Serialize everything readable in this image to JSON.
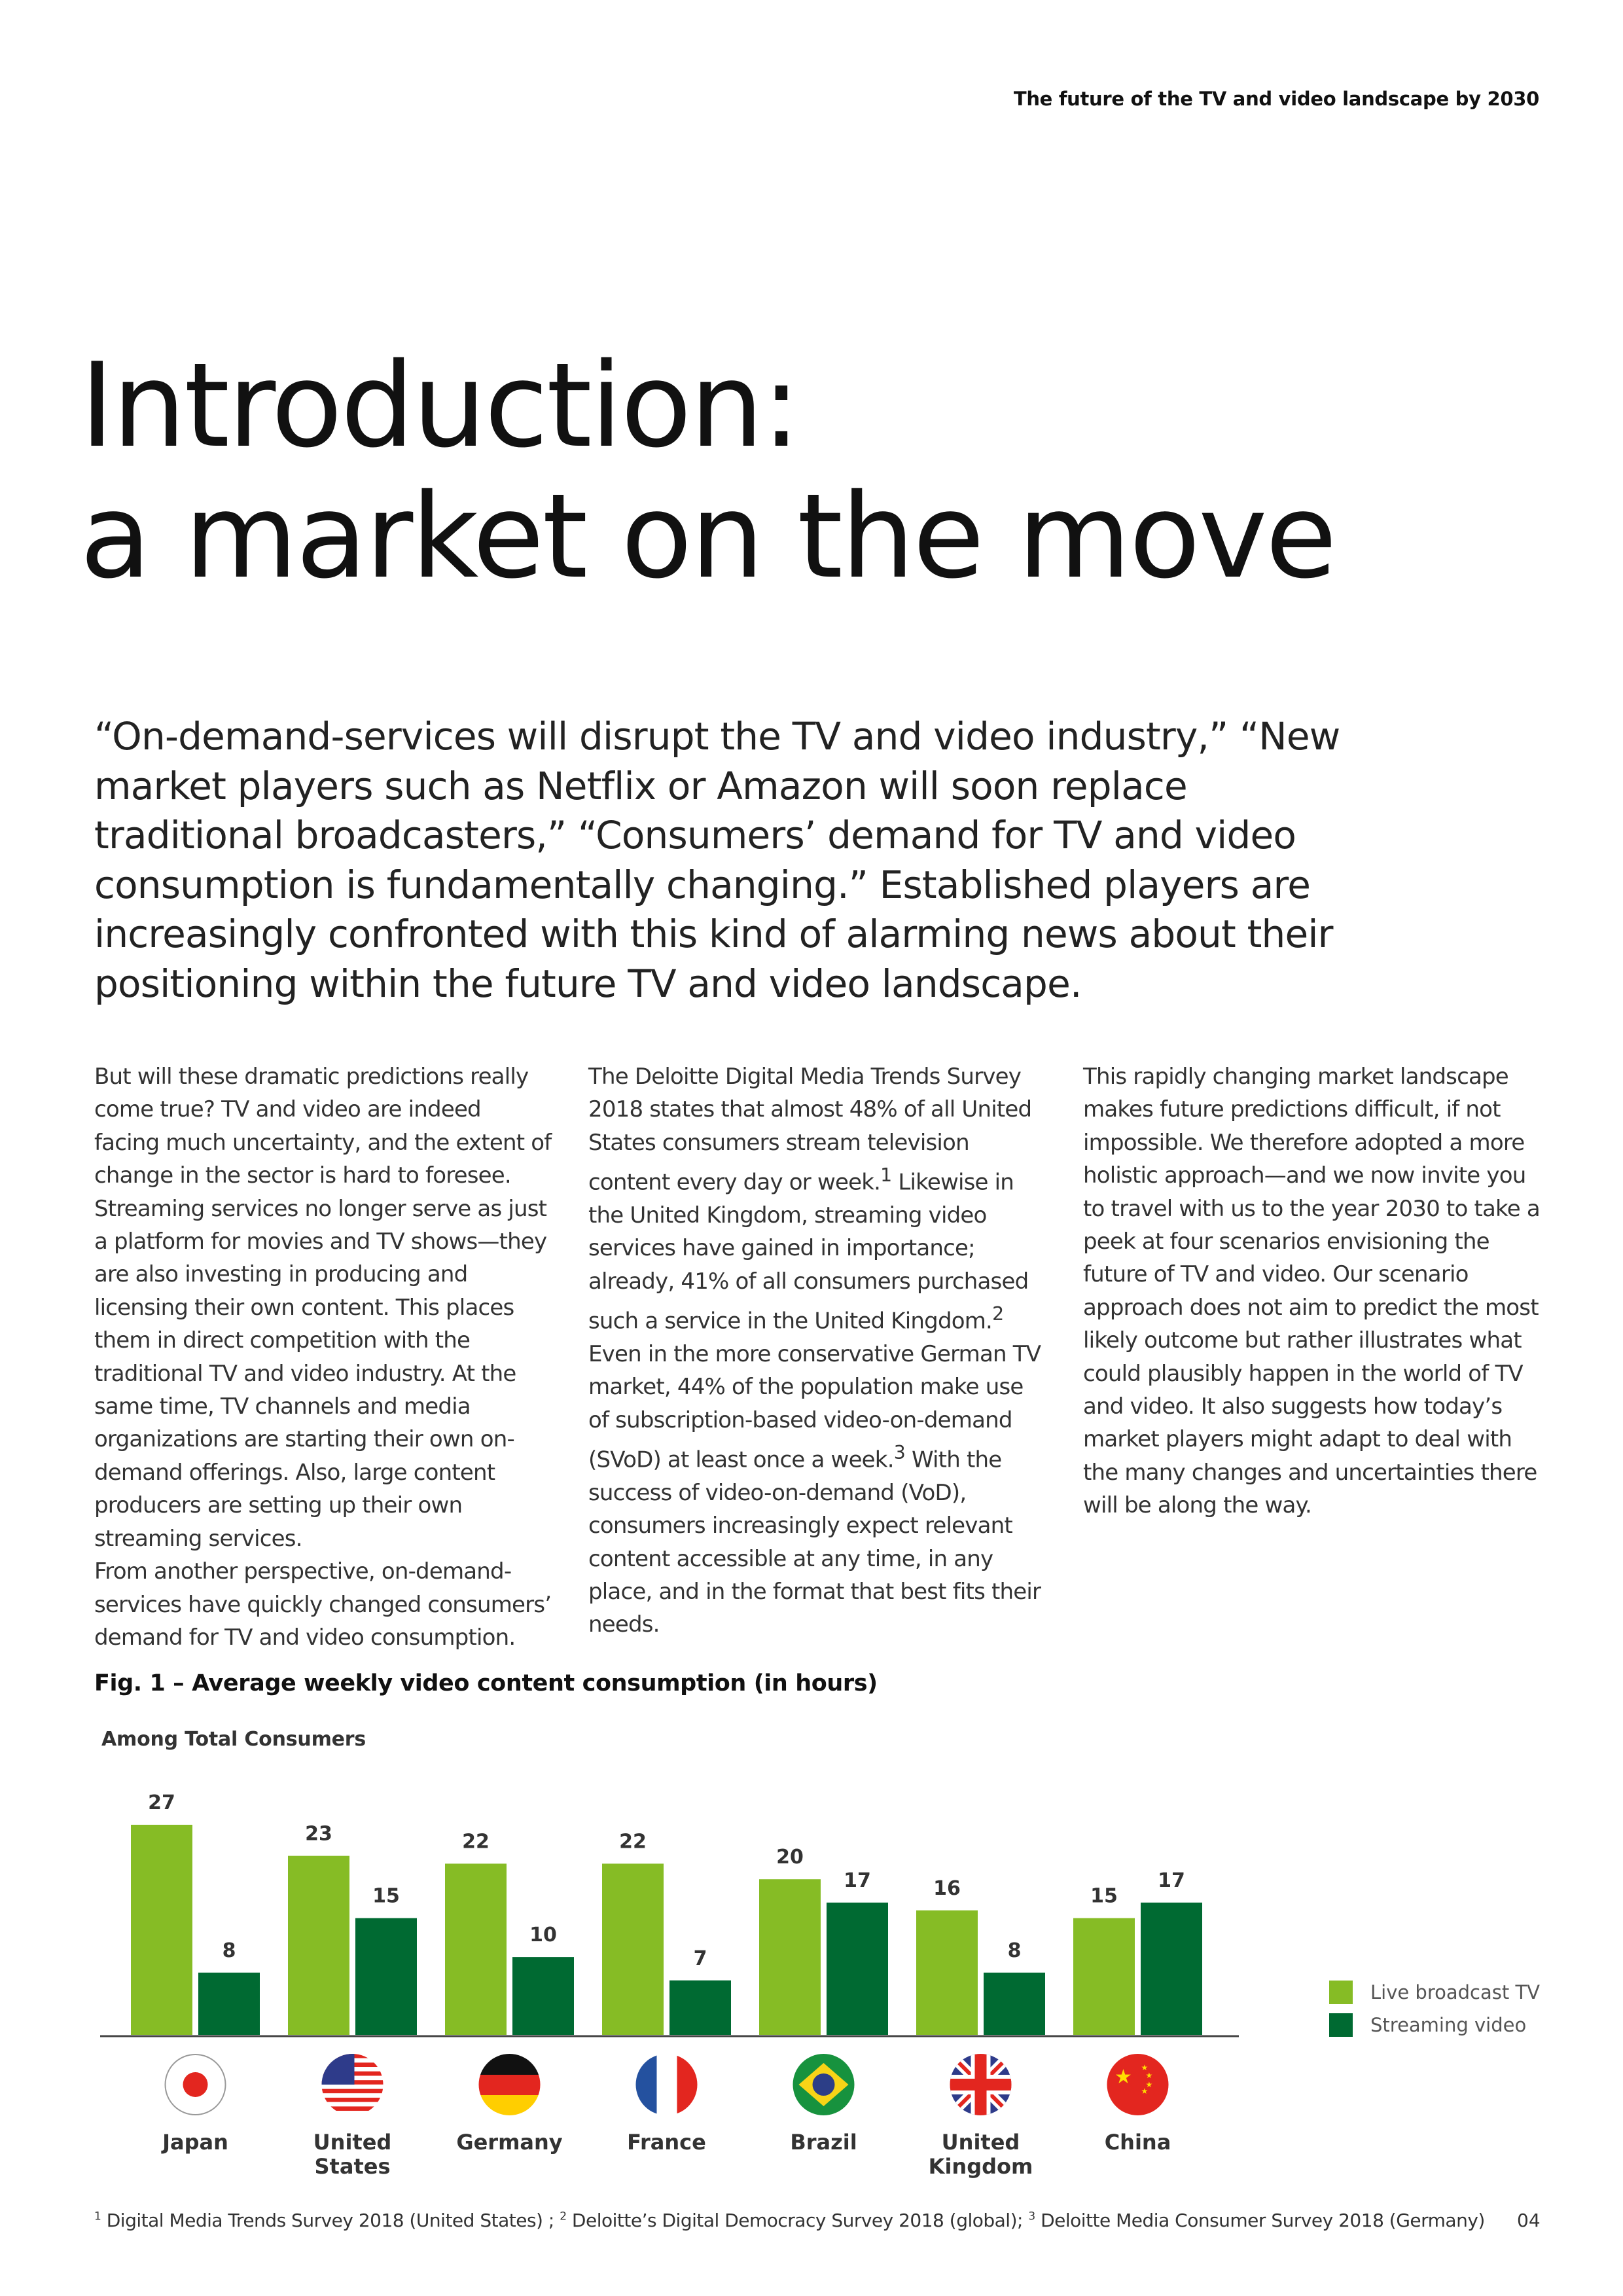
{
  "header": {
    "running_title": "The future of the TV and video landscape by 2030"
  },
  "title": {
    "line1": "Introduction:",
    "line2": "a market on the move"
  },
  "lead": "“On-demand-services will disrupt the TV and video industry,” “New market players such as Netflix or Amazon will soon replace traditional broadcasters,” “Consumers’ demand for TV and video consumption is fundamentally changing.” Established players are increasingly confronted with this kind of alarming news about their positioning within the future TV and video landscape.",
  "columns": {
    "col1_p1": "But will these dramatic predictions really come true? TV and video are indeed facing much uncertainty, and the extent of change in the sector is hard to foresee. Streaming services no longer serve as just a platform for movies and TV shows—they are also investing in producing and licensing their own content. This places them in direct competition with the traditional TV and video industry. At the same time, TV channels and media organizations are starting their own on-demand offerings. Also, large content producers are setting up their own streaming services.",
    "col1_p2": "From another perspective, on-demand-services have quickly changed consumers’ demand for TV and video consumption.",
    "col2_a": "The Deloitte Digital Media Trends Survey 2018 states that almost 48% of all United States consumers stream television content every day or week.",
    "col2_b": " Likewise in the United Kingdom, streaming video services have gained in importance; already, 41% of all consumers purchased such a service in the United Kingdom.",
    "col2_c": " Even in the more conservative German TV market, 44% of the population make use of subscription-based video-on-demand (SVoD) at least once a week.",
    "col2_d": " With the success of video-on-demand (VoD), consumers increasingly expect relevant content accessible at any time, in any place, and in the format that best fits their needs.",
    "sup1": "1",
    "sup2": "2",
    "sup3": "3",
    "col3": "This rapidly changing market landscape makes future predictions difficult, if not impossible. We therefore adopted a more holistic approach—and we now invite you to travel with us to the year 2030 to take a peek at four scenarios envisioning the future of TV and video. Our scenario approach does not aim to predict the most likely outcome but rather illustrates what could plausibly happen in the world of TV and video. It also suggests how today’s market players might adapt to deal with the many changes and uncertainties there will be along the way."
  },
  "chart_data": {
    "type": "bar",
    "title": "Fig. 1 – Average weekly video content consumption (in hours)",
    "subtitle": "Among Total Consumers",
    "categories": [
      [
        "Japan"
      ],
      [
        "United",
        "States"
      ],
      [
        "Germany"
      ],
      [
        "France"
      ],
      [
        "Brazil"
      ],
      [
        "United",
        "Kingdom"
      ],
      [
        "China"
      ]
    ],
    "flags": [
      "japan-flag-icon",
      "usa-flag-icon",
      "germany-flag-icon",
      "france-flag-icon",
      "brazil-flag-icon",
      "uk-flag-icon",
      "china-flag-icon"
    ],
    "series": [
      {
        "name": "Live broadcast TV",
        "color": "#86bc25",
        "values": [
          27,
          23,
          22,
          22,
          20,
          16,
          15
        ]
      },
      {
        "name": "Streaming video",
        "color": "#006a32",
        "values": [
          8,
          15,
          10,
          7,
          17,
          8,
          17
        ]
      }
    ],
    "ylim": [
      0,
      27
    ],
    "grid": false,
    "legend": "right"
  },
  "footnote": {
    "n1": "1",
    "t1": " Digital Media Trends Survey 2018 (United States) ; ",
    "n2": "2",
    "t2": " Deloitte’s Digital Democracy Survey 2018 (global); ",
    "n3": "3",
    "t3": " Deloitte Media Consumer Survey 2018 (Germany)"
  },
  "page_number": "04"
}
